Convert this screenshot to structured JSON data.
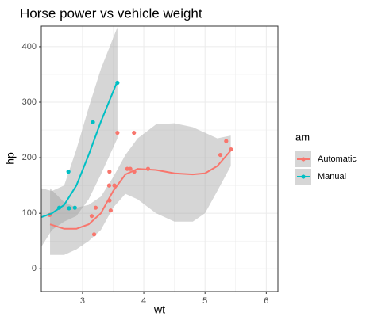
{
  "chart_data": {
    "type": "scatter",
    "title": "Horse power vs vehicle weight",
    "x_label": "wt",
    "y_label": "hp",
    "legend_title": "am",
    "xlim": [
      2.327,
      6.19
    ],
    "xticks": [
      3,
      4,
      5,
      6
    ],
    "ylim": [
      -41,
      437
    ],
    "yticks": [
      0,
      100,
      200,
      300,
      400
    ],
    "grid": true,
    "series": [
      {
        "name": "Automatic",
        "color": "#f8766d",
        "x": [
          2.465,
          3.215,
          3.44,
          3.46,
          3.57,
          3.19,
          3.15,
          3.44,
          3.44,
          4.07,
          3.73,
          3.78,
          5.25,
          5.424,
          5.345,
          3.52,
          3.435,
          3.84,
          3.845
        ],
        "values": [
          97,
          110,
          175,
          105,
          245,
          62,
          95,
          123,
          123,
          180,
          180,
          180,
          205,
          215,
          230,
          150,
          150,
          245,
          175
        ],
        "smooth": {
          "x": [
            2.47,
            2.7,
            2.9,
            3.1,
            3.3,
            3.5,
            3.7,
            3.9,
            4.2,
            4.5,
            4.8,
            5.0,
            5.2,
            5.42
          ],
          "values": [
            80,
            72,
            72,
            80,
            100,
            140,
            170,
            180,
            178,
            172,
            170,
            172,
            185,
            213
          ],
          "upper": [
            145,
            120,
            110,
            115,
            130,
            165,
            205,
            235,
            260,
            262,
            255,
            245,
            235,
            240
          ],
          "lower": [
            25,
            25,
            35,
            50,
            70,
            110,
            135,
            125,
            100,
            85,
            85,
            100,
            140,
            185
          ]
        }
      },
      {
        "name": "Manual",
        "color": "#00bfc4",
        "x": [
          2.62,
          2.875,
          2.77,
          2.78,
          3.17,
          3.57
        ],
        "values": [
          110,
          110,
          175,
          109,
          264,
          335
        ],
        "smooth": {
          "x": [
            2.33,
            2.5,
            2.7,
            2.9,
            3.1,
            3.3,
            3.57
          ],
          "values": [
            93,
            100,
            115,
            150,
            205,
            265,
            338
          ],
          "upper": [
            145,
            140,
            150,
            215,
            290,
            360,
            435
          ],
          "lower": [
            40,
            70,
            85,
            95,
            125,
            170,
            235
          ]
        }
      }
    ]
  }
}
